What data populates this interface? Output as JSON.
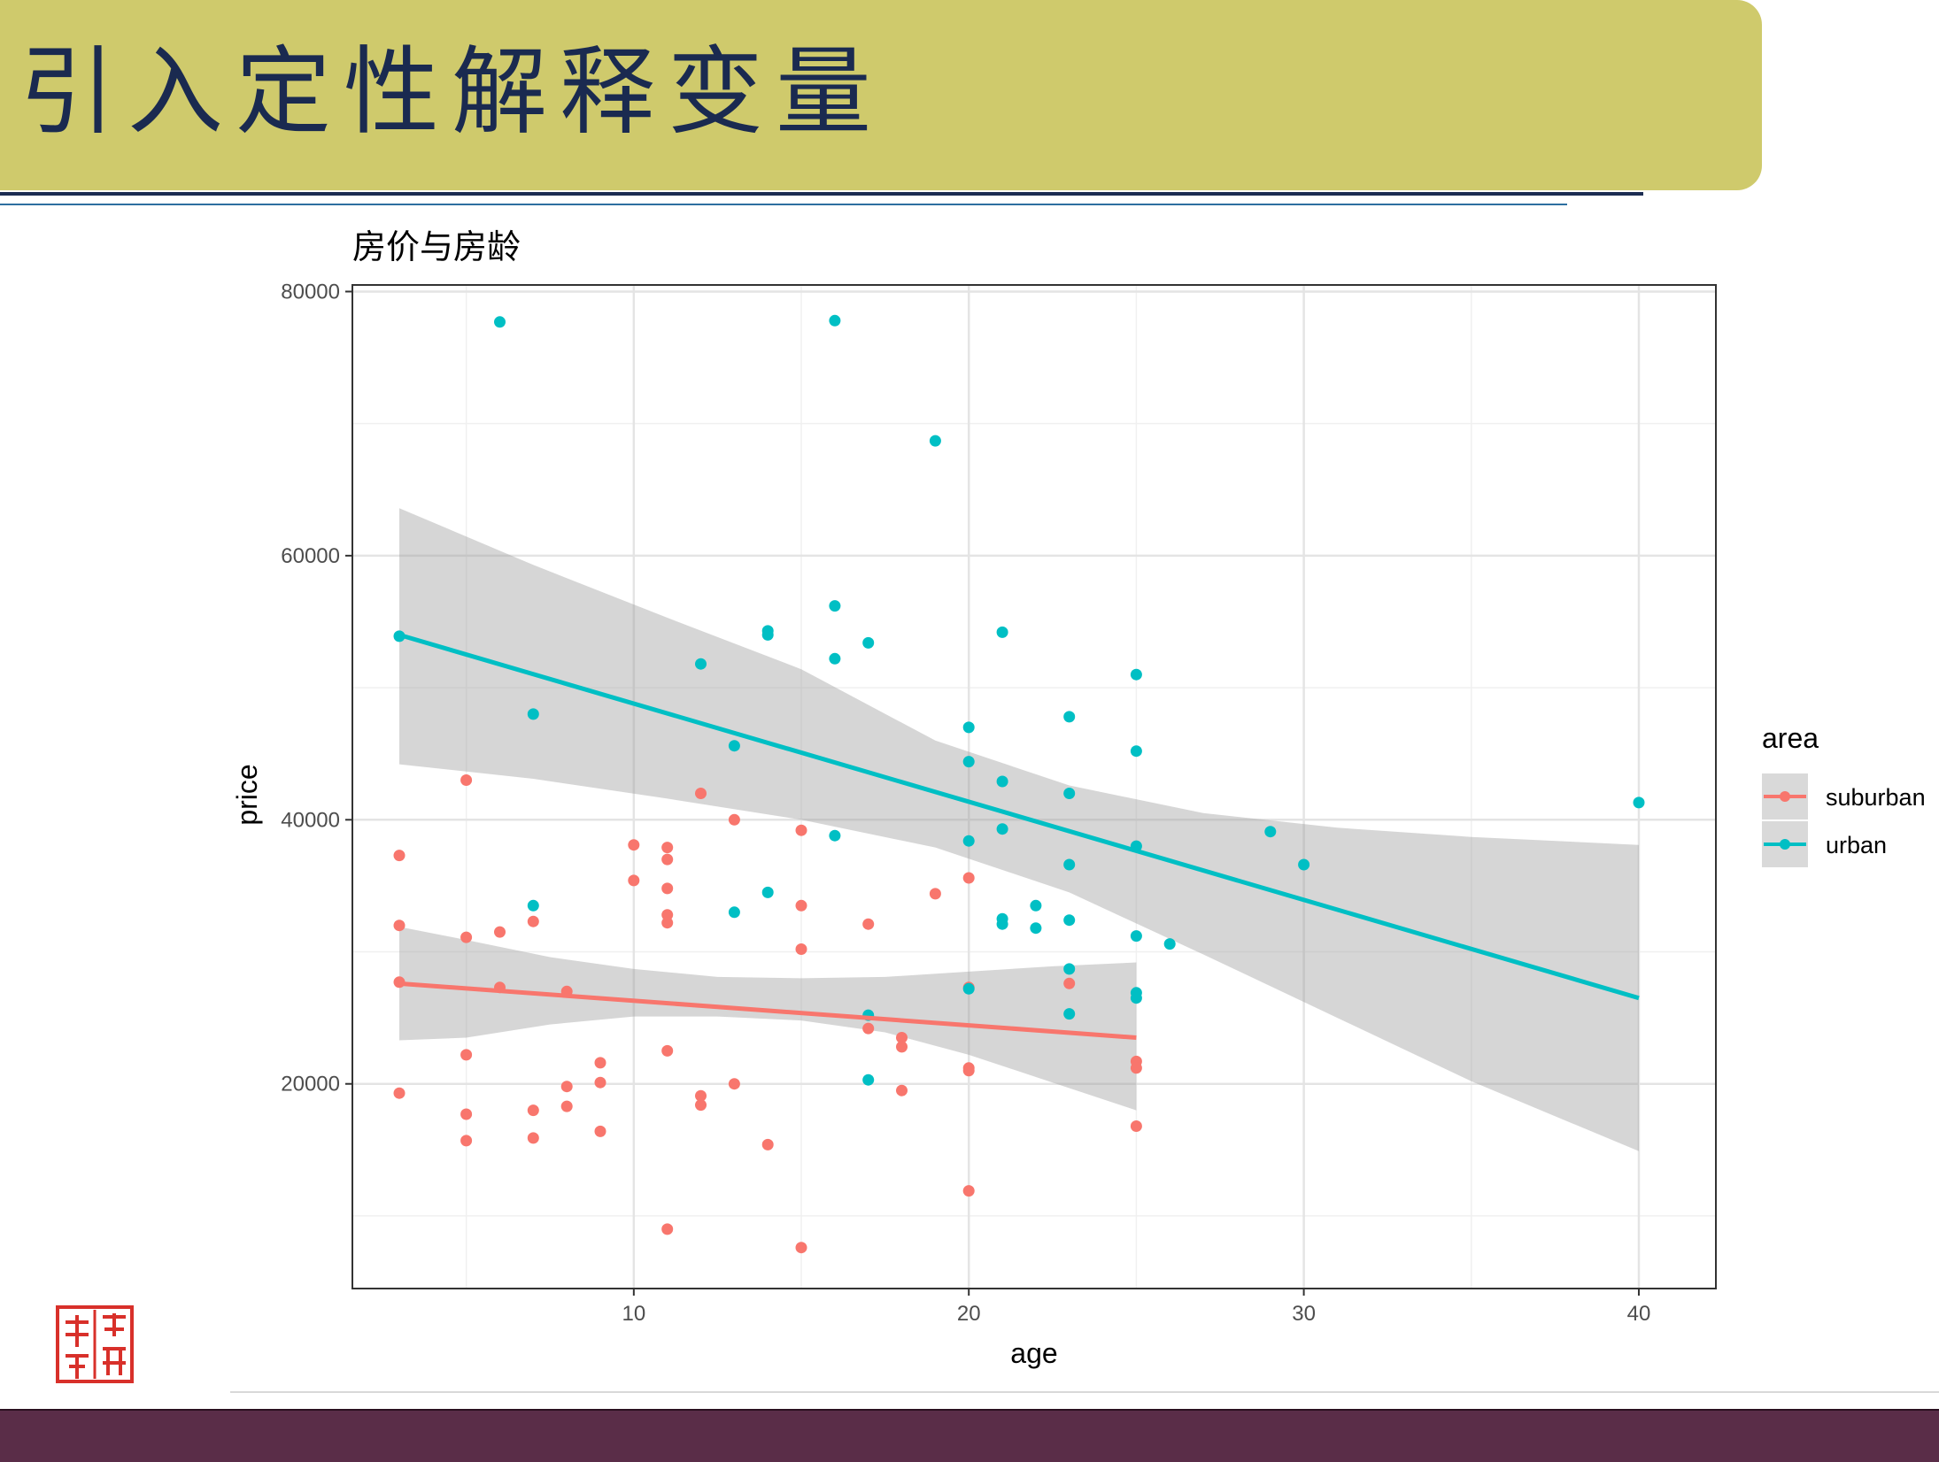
{
  "slide": {
    "title": "引入定性解释变量"
  },
  "colors": {
    "suburban": "#f8766d",
    "urban": "#00bfc4",
    "band": "#999999",
    "banner": "#cfca6c",
    "footer": "#5a2d48"
  },
  "chart_data": {
    "type": "scatter",
    "title": "房价与房龄",
    "xlabel": "age",
    "ylabel": "price",
    "xlim": [
      1.6,
      42.3
    ],
    "ylim": [
      4500,
      80500
    ],
    "x_ticks": [
      10,
      20,
      30,
      40
    ],
    "y_ticks": [
      20000,
      40000,
      60000,
      80000
    ],
    "grid": true,
    "legend": {
      "title": "area",
      "position": "right"
    },
    "series": [
      {
        "name": "suburban",
        "points": [
          [
            3,
            37300
          ],
          [
            3,
            32000
          ],
          [
            3,
            27700
          ],
          [
            3,
            19300
          ],
          [
            5,
            43000
          ],
          [
            5,
            31100
          ],
          [
            5,
            22200
          ],
          [
            5,
            17700
          ],
          [
            5,
            15700
          ],
          [
            6,
            31500
          ],
          [
            6,
            27300
          ],
          [
            7,
            32300
          ],
          [
            7,
            18000
          ],
          [
            7,
            15900
          ],
          [
            8,
            27000
          ],
          [
            8,
            19800
          ],
          [
            8,
            18300
          ],
          [
            9,
            21600
          ],
          [
            9,
            20100
          ],
          [
            9,
            16400
          ],
          [
            10,
            38100
          ],
          [
            10,
            35400
          ],
          [
            11,
            37900
          ],
          [
            11,
            37000
          ],
          [
            11,
            34800
          ],
          [
            11,
            32800
          ],
          [
            11,
            32200
          ],
          [
            11,
            22500
          ],
          [
            11,
            9000
          ],
          [
            12,
            42000
          ],
          [
            12,
            19100
          ],
          [
            12,
            18400
          ],
          [
            13,
            40000
          ],
          [
            13,
            20000
          ],
          [
            14,
            15400
          ],
          [
            15,
            39200
          ],
          [
            15,
            33500
          ],
          [
            15,
            30200
          ],
          [
            15,
            7600
          ],
          [
            17,
            32100
          ],
          [
            17,
            24200
          ],
          [
            18,
            23500
          ],
          [
            18,
            22800
          ],
          [
            18,
            19500
          ],
          [
            19,
            34400
          ],
          [
            20,
            35600
          ],
          [
            20,
            27300
          ],
          [
            20,
            21200
          ],
          [
            20,
            21000
          ],
          [
            20,
            11900
          ],
          [
            23,
            27600
          ],
          [
            25,
            21700
          ],
          [
            25,
            21200
          ],
          [
            25,
            16800
          ]
        ],
        "fit": {
          "x": [
            3,
            25
          ],
          "y": [
            27600,
            23500
          ]
        },
        "ci_band": {
          "x": [
            3,
            5,
            7.5,
            10,
            12.5,
            15,
            17.5,
            20,
            22.5,
            25
          ],
          "lower": [
            23300,
            23500,
            24500,
            25100,
            25100,
            24800,
            23900,
            22200,
            20100,
            18000
          ],
          "upper": [
            31900,
            30900,
            29600,
            28700,
            28100,
            28000,
            28100,
            28500,
            28900,
            29200
          ]
        }
      },
      {
        "name": "urban",
        "points": [
          [
            3,
            53900
          ],
          [
            6,
            77700
          ],
          [
            7,
            48000
          ],
          [
            7,
            33500
          ],
          [
            12,
            51800
          ],
          [
            13,
            45600
          ],
          [
            13,
            33000
          ],
          [
            14,
            54300
          ],
          [
            14,
            54000
          ],
          [
            14,
            34500
          ],
          [
            16,
            77800
          ],
          [
            16,
            56200
          ],
          [
            16,
            52200
          ],
          [
            16,
            38800
          ],
          [
            17,
            53400
          ],
          [
            17,
            25200
          ],
          [
            17,
            20300
          ],
          [
            19,
            68700
          ],
          [
            20,
            47000
          ],
          [
            20,
            44400
          ],
          [
            20,
            38400
          ],
          [
            20,
            27200
          ],
          [
            21,
            54200
          ],
          [
            21,
            42900
          ],
          [
            21,
            39300
          ],
          [
            21,
            32500
          ],
          [
            21,
            32100
          ],
          [
            22,
            33500
          ],
          [
            22,
            31800
          ],
          [
            23,
            47800
          ],
          [
            23,
            42000
          ],
          [
            23,
            36600
          ],
          [
            23,
            32400
          ],
          [
            23,
            28700
          ],
          [
            23,
            25300
          ],
          [
            25,
            51000
          ],
          [
            25,
            45200
          ],
          [
            25,
            38000
          ],
          [
            25,
            31200
          ],
          [
            25,
            26900
          ],
          [
            25,
            26500
          ],
          [
            26,
            30600
          ],
          [
            29,
            39100
          ],
          [
            30,
            36600
          ],
          [
            40,
            41300
          ]
        ],
        "fit": {
          "x": [
            3,
            40
          ],
          "y": [
            54000,
            26500
          ]
        },
        "ci_band": {
          "x": [
            3,
            7,
            11,
            15,
            19,
            23,
            27,
            31,
            35,
            40
          ],
          "lower": [
            44200,
            43100,
            41600,
            40000,
            37900,
            34500,
            29800,
            25000,
            20200,
            14900
          ],
          "upper": [
            63600,
            59300,
            55300,
            51400,
            46000,
            42600,
            40500,
            39400,
            38700,
            38100
          ]
        }
      }
    ]
  }
}
